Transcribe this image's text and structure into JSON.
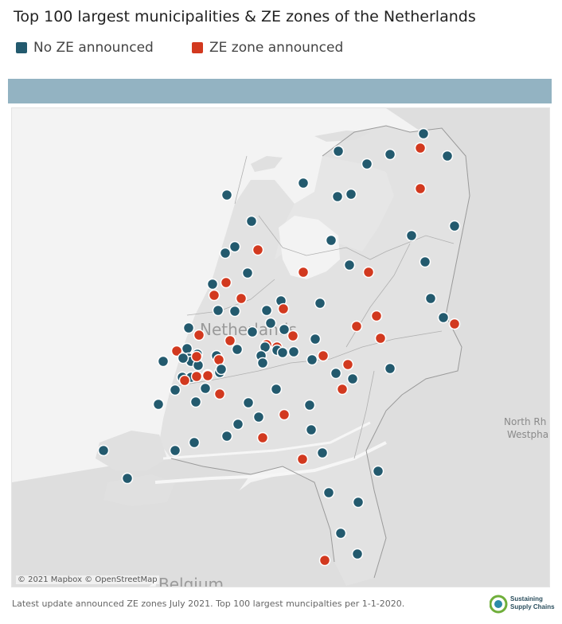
{
  "title": "Top 100 largest municipalities & ZE zones of the Netherlands",
  "legend": [
    {
      "label": "No ZE announced",
      "color": "#235a6e"
    },
    {
      "label": "ZE zone announced",
      "color": "#d2391f"
    }
  ],
  "map": {
    "labels": {
      "country": "Netherlands",
      "neighbor_line1": "North Rh",
      "neighbor_line2": "Westpha",
      "belgium": "Belgium"
    },
    "attribution": "© 2021 Mapbox © OpenStreetMap",
    "zoom_controls": false
  },
  "footer": "Latest update announced ZE zones July 2021. Top 100 largest muncipalties per 1-1-2020.",
  "logo": {
    "line1": "Sustaining",
    "line2": "Supply Chains"
  }
}
